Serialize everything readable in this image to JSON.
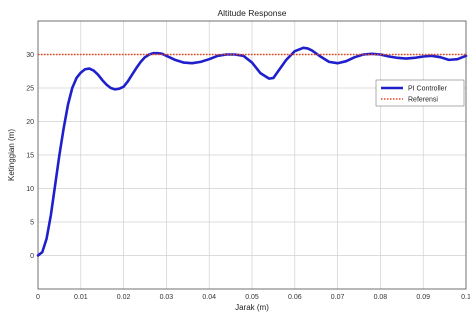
{
  "chart_data": {
    "type": "line",
    "title": "Altitude Response",
    "xlabel": "Jarak (m)",
    "ylabel": "Ketinggian (m)",
    "xlim": [
      0,
      0.1
    ],
    "ylim": [
      -5,
      35
    ],
    "xticks": [
      "0",
      "0.01",
      "0.02",
      "0.03",
      "0.04",
      "0.05",
      "0.06",
      "0.07",
      "0.08",
      "0.09",
      "0.1"
    ],
    "yticks": [
      "0",
      "5",
      "10",
      "15",
      "20",
      "25",
      "30"
    ],
    "grid": true,
    "legend_position": "right",
    "series": [
      {
        "name": "PI Controller",
        "color": "#1f1fcc",
        "style": "solid",
        "x": [
          0,
          0.001,
          0.002,
          0.003,
          0.004,
          0.005,
          0.006,
          0.007,
          0.008,
          0.009,
          0.01,
          0.011,
          0.012,
          0.013,
          0.014,
          0.015,
          0.016,
          0.017,
          0.018,
          0.019,
          0.02,
          0.021,
          0.022,
          0.023,
          0.024,
          0.025,
          0.026,
          0.027,
          0.028,
          0.029,
          0.03,
          0.032,
          0.034,
          0.036,
          0.038,
          0.04,
          0.042,
          0.044,
          0.046,
          0.048,
          0.05,
          0.052,
          0.054,
          0.055,
          0.056,
          0.058,
          0.06,
          0.062,
          0.063,
          0.064,
          0.066,
          0.068,
          0.07,
          0.072,
          0.074,
          0.076,
          0.078,
          0.08,
          0.082,
          0.084,
          0.086,
          0.088,
          0.09,
          0.092,
          0.094,
          0.096,
          0.098,
          0.1
        ],
        "y": [
          0,
          0.5,
          2.5,
          6,
          10.5,
          15,
          19,
          22.5,
          25,
          26.5,
          27.3,
          27.8,
          27.9,
          27.6,
          27,
          26.2,
          25.5,
          25,
          24.8,
          24.9,
          25.2,
          26,
          27,
          28,
          28.9,
          29.6,
          30,
          30.2,
          30.2,
          30.1,
          29.8,
          29.2,
          28.8,
          28.7,
          28.9,
          29.3,
          29.8,
          30.0,
          30.0,
          29.8,
          28.8,
          27.2,
          26.4,
          26.5,
          27.4,
          29.2,
          30.5,
          31.0,
          30.9,
          30.6,
          29.7,
          28.9,
          28.7,
          29.0,
          29.6,
          30.0,
          30.1,
          30.0,
          29.7,
          29.5,
          29.4,
          29.5,
          29.7,
          29.8,
          29.6,
          29.2,
          29.3,
          29.8
        ]
      },
      {
        "name": "Referensi",
        "color": "#e8451e",
        "style": "dotted",
        "x": [
          0,
          0.1
        ],
        "y": [
          30,
          30
        ]
      }
    ]
  }
}
